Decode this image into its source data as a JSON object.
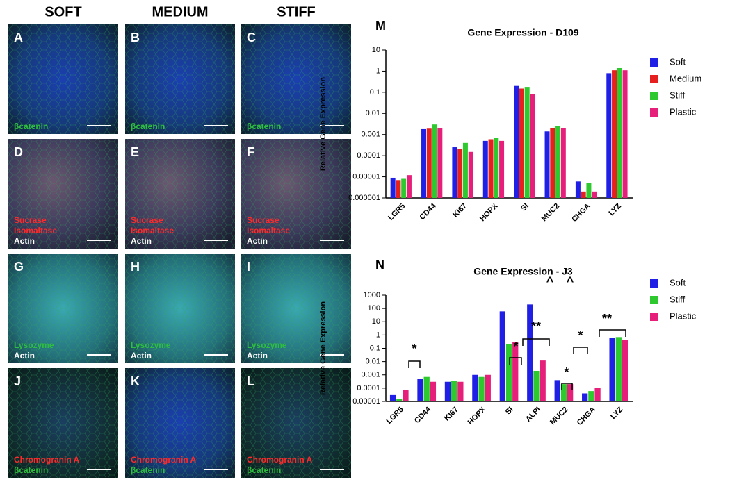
{
  "columns": [
    "SOFT",
    "MEDIUM",
    "STIFF"
  ],
  "panels": [
    {
      "letter": "A",
      "tone": "blue",
      "labels": [
        {
          "text": "βcatenin",
          "color": "#2fbf3f"
        }
      ]
    },
    {
      "letter": "B",
      "tone": "blue",
      "labels": [
        {
          "text": "βcatenin",
          "color": "#2fbf3f"
        }
      ]
    },
    {
      "letter": "C",
      "tone": "blue",
      "labels": [
        {
          "text": "βcatenin",
          "color": "#2fbf3f"
        }
      ]
    },
    {
      "letter": "D",
      "tone": "red",
      "labels": [
        {
          "text": "Sucrase",
          "color": "#ff2a2a"
        },
        {
          "text": "Isomaltase",
          "color": "#ff2a2a"
        },
        {
          "text": "Actin",
          "color": "#ffffff"
        }
      ]
    },
    {
      "letter": "E",
      "tone": "red",
      "labels": [
        {
          "text": "Sucrase",
          "color": "#ff2a2a"
        },
        {
          "text": "Isomaltase",
          "color": "#ff2a2a"
        },
        {
          "text": "Actin",
          "color": "#ffffff"
        }
      ]
    },
    {
      "letter": "F",
      "tone": "red",
      "labels": [
        {
          "text": "Sucrase",
          "color": "#ff2a2a"
        },
        {
          "text": "Isomaltase",
          "color": "#ff2a2a"
        },
        {
          "text": "Actin",
          "color": "#ffffff"
        }
      ]
    },
    {
      "letter": "G",
      "tone": "cyan",
      "labels": [
        {
          "text": "Lysozyme",
          "color": "#2fbf3f"
        },
        {
          "text": "Actin",
          "color": "#ffffff"
        }
      ]
    },
    {
      "letter": "H",
      "tone": "cyan",
      "labels": [
        {
          "text": "Lysozyme",
          "color": "#2fbf3f"
        },
        {
          "text": "Actin",
          "color": "#ffffff"
        }
      ]
    },
    {
      "letter": "I",
      "tone": "cyan",
      "labels": [
        {
          "text": "Lysozyme",
          "color": "#2fbf3f"
        },
        {
          "text": "Actin",
          "color": "#ffffff"
        }
      ]
    },
    {
      "letter": "J",
      "tone": "green",
      "labels": [
        {
          "text": "Chromogranin A",
          "color": "#ff2a2a"
        },
        {
          "text": "βcatenin",
          "color": "#2fbf3f"
        }
      ]
    },
    {
      "letter": "K",
      "tone": "blue",
      "labels": [
        {
          "text": "Chromogranin A",
          "color": "#ff2a2a"
        },
        {
          "text": "βcatenin",
          "color": "#2fbf3f"
        }
      ]
    },
    {
      "letter": "L",
      "tone": "green",
      "labels": [
        {
          "text": "Chromogranin A",
          "color": "#ff2a2a"
        },
        {
          "text": "βcatenin",
          "color": "#2fbf3f"
        }
      ]
    }
  ],
  "chart_data": [
    {
      "type": "bar",
      "panel": "M",
      "title": "Gene Expression - D109",
      "y_label": "Relative Gene Expression",
      "log_scale": true,
      "categories": [
        "LGR5",
        "CD44",
        "KI67",
        "HOPX",
        "SI",
        "MUC2",
        "CHGA",
        "LYZ"
      ],
      "series": [
        {
          "name": "Soft",
          "color": "#1f1fe6",
          "values": [
            9e-06,
            0.0018,
            0.00025,
            0.0005,
            0.2,
            0.0014,
            6e-06,
            0.8
          ]
        },
        {
          "name": "Medium",
          "color": "#e61f1f",
          "values": [
            7e-06,
            0.0019,
            0.0002,
            0.0006,
            0.15,
            0.002,
            2e-06,
            1.1
          ]
        },
        {
          "name": "Stiff",
          "color": "#2ec92e",
          "values": [
            8e-06,
            0.003,
            0.0004,
            0.0007,
            0.18,
            0.0025,
            5e-06,
            1.4
          ]
        },
        {
          "name": "Plastic",
          "color": "#e6207a",
          "values": [
            1.2e-05,
            0.002,
            0.00015,
            0.0005,
            0.08,
            0.002,
            2e-06,
            1.1
          ]
        }
      ],
      "ylim": [
        1e-06,
        10
      ],
      "yticks": [
        1e-06,
        1e-05,
        0.0001,
        0.001,
        0.01,
        0.1,
        1,
        10
      ],
      "annotations": []
    },
    {
      "type": "bar",
      "panel": "N",
      "title": "Gene Expression - J3",
      "y_label": "Relative Gene Expression",
      "log_scale": true,
      "categories": [
        "LGR5",
        "CD44",
        "KI67",
        "HOPX",
        "SI",
        "ALPI",
        "MUC2",
        "CHGA",
        "LYZ"
      ],
      "series": [
        {
          "name": "Soft",
          "color": "#1f1fe6",
          "values": [
            3e-05,
            0.0005,
            0.0003,
            0.001,
            60,
            200,
            0.0004,
            4e-05,
            0.6
          ]
        },
        {
          "name": "Stiff",
          "color": "#2ec92e",
          "values": [
            1.5e-05,
            0.0007,
            0.00035,
            0.0007,
            0.2,
            0.002,
            0.0002,
            6e-05,
            0.7
          ]
        },
        {
          "name": "Plastic",
          "color": "#e6207a",
          "values": [
            7e-05,
            0.0003,
            0.0003,
            0.001,
            0.3,
            0.012,
            0.0002,
            0.0001,
            0.4
          ]
        }
      ],
      "ylim": [
        1e-05,
        1000
      ],
      "yticks": [
        1e-05,
        0.0001,
        0.001,
        0.01,
        0.1,
        1,
        10,
        100,
        1000
      ],
      "annotations": [
        "*",
        "*",
        "**",
        "^",
        "^",
        "*",
        "*",
        "**"
      ]
    }
  ]
}
